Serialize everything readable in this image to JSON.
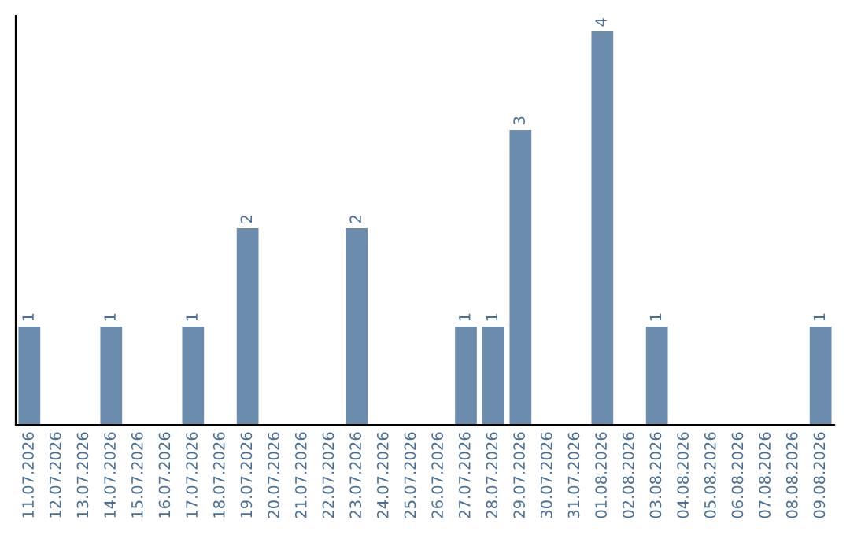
{
  "chart_data": {
    "type": "bar",
    "categories": [
      "11.07.2026",
      "12.07.2026",
      "13.07.2026",
      "14.07.2026",
      "15.07.2026",
      "16.07.2026",
      "17.07.2026",
      "18.07.2026",
      "19.07.2026",
      "20.07.2026",
      "21.07.2026",
      "22.07.2026",
      "23.07.2026",
      "24.07.2026",
      "25.07.2026",
      "26.07.2026",
      "27.07.2026",
      "28.07.2026",
      "29.07.2026",
      "30.07.2026",
      "31.07.2026",
      "01.08.2026",
      "02.08.2026",
      "03.08.2026",
      "04.08.2026",
      "05.08.2026",
      "06.08.2026",
      "07.08.2026",
      "08.08.2026",
      "09.08.2026"
    ],
    "values": [
      1,
      0,
      0,
      1,
      0,
      0,
      1,
      0,
      2,
      0,
      0,
      0,
      2,
      0,
      0,
      0,
      1,
      1,
      3,
      0,
      0,
      4,
      0,
      1,
      0,
      0,
      0,
      0,
      0,
      1
    ],
    "value_labels": [
      "1",
      null,
      null,
      "1",
      null,
      null,
      "1",
      null,
      "2",
      null,
      null,
      null,
      "2",
      null,
      null,
      null,
      "1",
      "1",
      "3",
      null,
      null,
      "4",
      null,
      "1",
      null,
      null,
      null,
      null,
      null,
      "1"
    ],
    "color": "#6b8cad",
    "tick_labels": "x",
    "grid": false
  }
}
